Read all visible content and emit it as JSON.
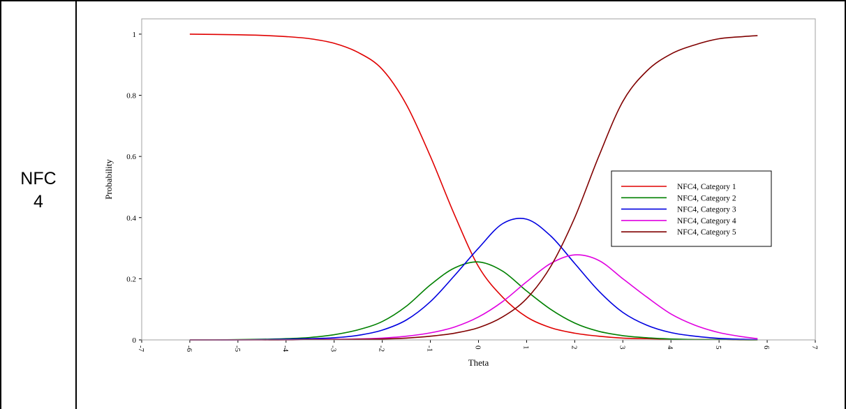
{
  "row_label": {
    "line1": "NFC",
    "line2": "4"
  },
  "chart_data": {
    "type": "line",
    "title": "",
    "xlabel": "Theta",
    "ylabel": "Probability",
    "xlim": [
      -7,
      7
    ],
    "ylim": [
      0,
      1.05
    ],
    "xticks": [
      "-7",
      "-6",
      "-5",
      "-4",
      "-3",
      "-2",
      "-1",
      "0",
      "1",
      "2",
      "3",
      "4",
      "5",
      "6",
      "7"
    ],
    "yticks": [
      "0",
      "0.2",
      "0.4",
      "0.6",
      "0.8",
      "1"
    ],
    "grid": false,
    "legend_position": "right",
    "x": [
      -6,
      -5.5,
      -5,
      -4.5,
      -4,
      -3.5,
      -3,
      -2.5,
      -2,
      -1.5,
      -1,
      -0.5,
      0,
      0.5,
      1,
      1.5,
      2,
      2.5,
      3,
      3.5,
      4,
      4.5,
      5,
      5.5,
      5.8
    ],
    "series": [
      {
        "name": "NFC4, Category 1",
        "color": "#e00000",
        "values": [
          1.0,
          0.999,
          0.998,
          0.996,
          0.992,
          0.985,
          0.97,
          0.94,
          0.885,
          0.77,
          0.6,
          0.41,
          0.24,
          0.14,
          0.075,
          0.04,
          0.022,
          0.012,
          0.006,
          0.004,
          0.002,
          0.001,
          0.001,
          0.0,
          0.0
        ]
      },
      {
        "name": "NFC4, Category 2",
        "color": "#008000",
        "values": [
          0.0,
          0.0,
          0.001,
          0.002,
          0.004,
          0.008,
          0.017,
          0.033,
          0.06,
          0.11,
          0.18,
          0.235,
          0.255,
          0.225,
          0.16,
          0.1,
          0.055,
          0.028,
          0.014,
          0.007,
          0.003,
          0.001,
          0.001,
          0.0,
          0.0
        ]
      },
      {
        "name": "NFC4, Category 3",
        "color": "#0000e0",
        "values": [
          0.0,
          0.0,
          0.0,
          0.001,
          0.002,
          0.004,
          0.007,
          0.015,
          0.032,
          0.065,
          0.125,
          0.21,
          0.3,
          0.38,
          0.395,
          0.34,
          0.25,
          0.16,
          0.09,
          0.048,
          0.024,
          0.012,
          0.005,
          0.002,
          0.001
        ]
      },
      {
        "name": "NFC4, Category 4",
        "color": "#e000e0",
        "values": [
          0.0,
          0.0,
          0.0,
          0.0,
          0.0,
          0.001,
          0.002,
          0.003,
          0.006,
          0.012,
          0.023,
          0.042,
          0.075,
          0.125,
          0.19,
          0.25,
          0.278,
          0.26,
          0.2,
          0.14,
          0.085,
          0.048,
          0.024,
          0.01,
          0.004
        ]
      },
      {
        "name": "NFC4, Category 5",
        "color": "#800000",
        "values": [
          0.0,
          0.0,
          0.0,
          0.0,
          0.0,
          0.001,
          0.001,
          0.002,
          0.003,
          0.006,
          0.012,
          0.022,
          0.04,
          0.075,
          0.135,
          0.24,
          0.4,
          0.6,
          0.78,
          0.88,
          0.935,
          0.965,
          0.985,
          0.992,
          0.995
        ]
      }
    ]
  }
}
